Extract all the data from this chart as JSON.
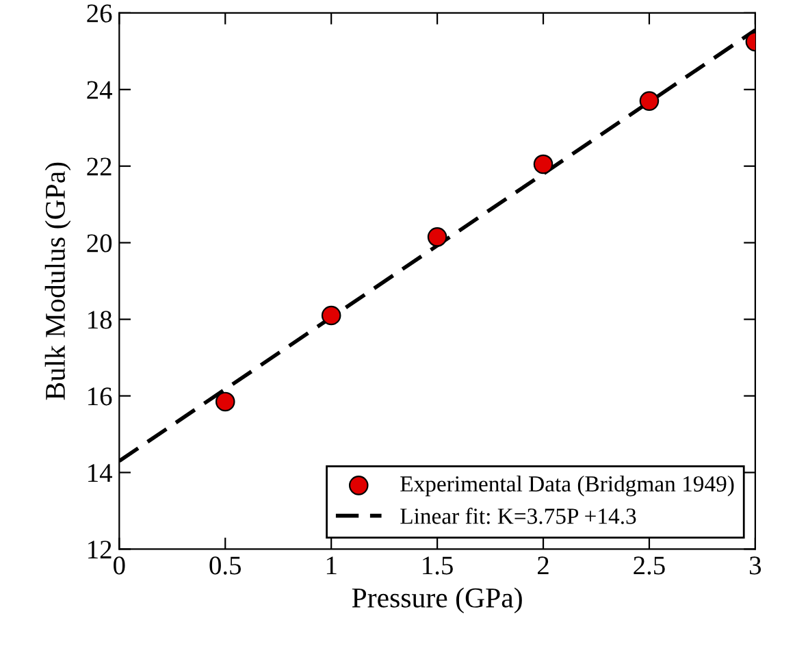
{
  "chart_data": {
    "type": "scatter",
    "xlabel": "Pressure (GPa)",
    "ylabel": "Bulk Modulus (GPa)",
    "xlim": [
      0,
      3
    ],
    "ylim": [
      12,
      26
    ],
    "xticks": [
      0,
      0.5,
      1,
      1.5,
      2,
      2.5,
      3
    ],
    "yticks": [
      12,
      14,
      16,
      18,
      20,
      22,
      24,
      26
    ],
    "grid": false,
    "legend": "bottom right",
    "series": [
      {
        "name": "Experimental Data (Bridgman 1949)",
        "marker": "circle",
        "color": "#e00000",
        "x": [
          0.5,
          1,
          1.5,
          2,
          2.5,
          3
        ],
        "values": [
          15.85,
          18.1,
          20.15,
          22.05,
          23.7,
          25.25
        ]
      },
      {
        "name": "Linear fit: K=3.75P +14.3",
        "type": "line",
        "line_style": "dashed",
        "marker": "none",
        "color": "#000000",
        "x": [
          0,
          3
        ],
        "values": [
          14.3,
          25.55
        ]
      }
    ]
  }
}
